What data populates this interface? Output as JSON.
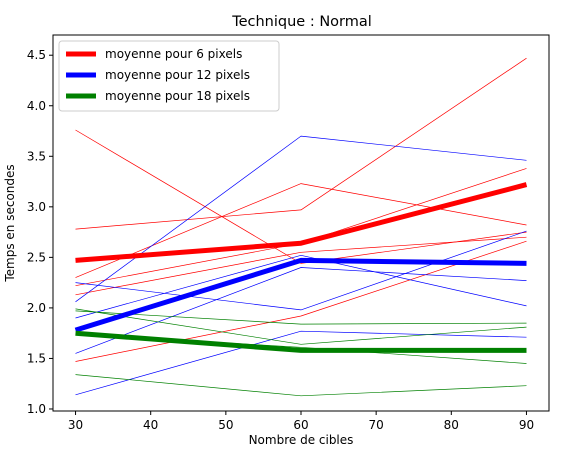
{
  "chart_data": {
    "type": "line",
    "title": "Technique : Normal",
    "xlabel": "Nombre de cibles",
    "ylabel": "Temps en secondes",
    "x": [
      30,
      60,
      90
    ],
    "xlim": [
      27,
      93
    ],
    "ylim": [
      0.98,
      4.7
    ],
    "xticks": [
      30,
      40,
      50,
      60,
      70,
      80,
      90
    ],
    "yticks": [
      1.0,
      1.5,
      2.0,
      2.5,
      3.0,
      3.5,
      4.0,
      4.5
    ],
    "grid": false,
    "legend_position": "top-left",
    "colors": {
      "6px": "#ff0000",
      "12px": "#0000ff",
      "18px": "#008000"
    },
    "series": [
      {
        "name": "moyenne pour 6 pixels",
        "color": "#ff0000",
        "kind": "mean",
        "values": [
          2.47,
          2.64,
          3.22
        ]
      },
      {
        "name": "moyenne pour 12 pixels",
        "color": "#0000ff",
        "kind": "mean",
        "values": [
          1.78,
          2.47,
          2.44
        ]
      },
      {
        "name": "moyenne pour 18 pixels",
        "color": "#008000",
        "kind": "mean",
        "values": [
          1.75,
          1.58,
          1.58
        ]
      },
      {
        "color": "#ff0000",
        "kind": "individual",
        "values": [
          3.76,
          2.44,
          2.75
        ]
      },
      {
        "color": "#ff0000",
        "kind": "individual",
        "values": [
          2.78,
          2.97,
          4.47
        ]
      },
      {
        "color": "#ff0000",
        "kind": "individual",
        "values": [
          2.3,
          3.23,
          2.82
        ]
      },
      {
        "color": "#ff0000",
        "kind": "individual",
        "values": [
          2.22,
          2.64,
          3.38
        ]
      },
      {
        "color": "#ff0000",
        "kind": "individual",
        "values": [
          2.13,
          2.55,
          2.7
        ]
      },
      {
        "color": "#ff0000",
        "kind": "individual",
        "values": [
          1.47,
          1.92,
          2.66
        ]
      },
      {
        "color": "#0000ff",
        "kind": "individual",
        "values": [
          2.06,
          3.7,
          3.46
        ]
      },
      {
        "color": "#0000ff",
        "kind": "individual",
        "values": [
          2.25,
          1.98,
          2.76
        ]
      },
      {
        "color": "#0000ff",
        "kind": "individual",
        "values": [
          1.9,
          2.52,
          2.02
        ]
      },
      {
        "color": "#0000ff",
        "kind": "individual",
        "values": [
          1.55,
          2.4,
          2.27
        ]
      },
      {
        "color": "#0000ff",
        "kind": "individual",
        "values": [
          1.14,
          1.77,
          1.71
        ]
      },
      {
        "color": "#008000",
        "kind": "individual",
        "values": [
          1.99,
          1.64,
          1.81
        ]
      },
      {
        "color": "#008000",
        "kind": "individual",
        "values": [
          1.97,
          1.84,
          1.85
        ]
      },
      {
        "color": "#008000",
        "kind": "individual",
        "values": [
          1.34,
          1.13,
          1.23
        ]
      },
      {
        "color": "#008000",
        "kind": "individual",
        "values": [
          1.74,
          1.61,
          1.45
        ]
      }
    ]
  }
}
